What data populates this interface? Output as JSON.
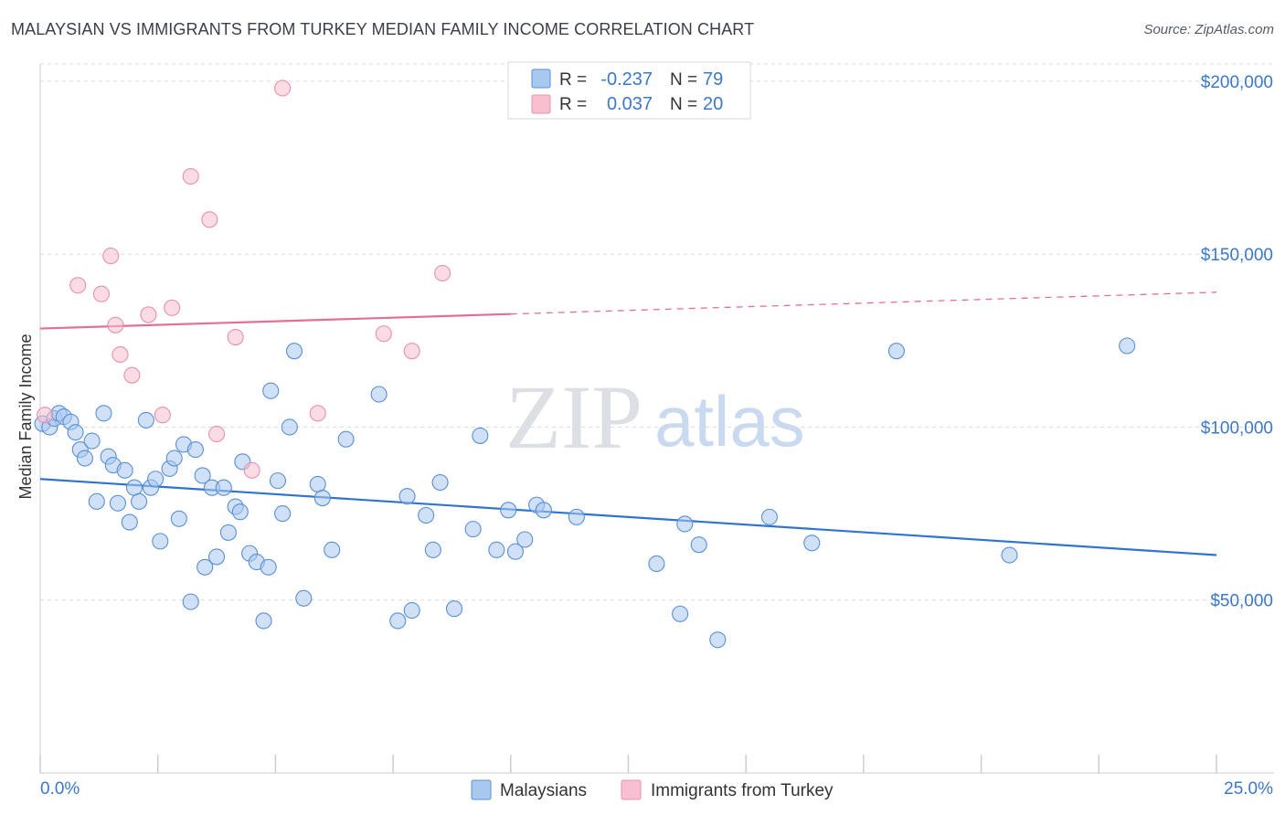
{
  "header": {
    "title": "MALAYSIAN VS IMMIGRANTS FROM TURKEY MEDIAN FAMILY INCOME CORRELATION CHART",
    "source": "Source: ZipAtlas.com"
  },
  "watermark": {
    "zip": "ZIP",
    "atlas": "atlas"
  },
  "colors": {
    "blue_fill": "#a9c8f0",
    "blue_stroke": "#5a8fd6",
    "blue_line": "#2f74d0",
    "pink_fill": "#f7bfd0",
    "pink_stroke": "#e890ad",
    "pink_line": "#e36f96",
    "grid": "#d8dce3",
    "tick_text": "#3c78c8"
  },
  "stats_legend": {
    "rows": [
      {
        "r_label": "R =",
        "r_value": "-0.237",
        "n_label": "N =",
        "n_value": "79"
      },
      {
        "r_label": "R =",
        "r_value": "0.037",
        "n_label": "N =",
        "n_value": "20"
      }
    ]
  },
  "bottom_legend": {
    "items": [
      "Malaysians",
      "Immigrants from Turkey"
    ]
  },
  "chart_data": {
    "type": "scatter",
    "title": "MALAYSIAN VS IMMIGRANTS FROM TURKEY MEDIAN FAMILY INCOME CORRELATION CHART",
    "xlabel": "",
    "ylabel": "Median Family Income",
    "xlim": [
      0,
      25
    ],
    "ylim": [
      0,
      205000
    ],
    "x_tick_labels": [
      "0.0%",
      "25.0%"
    ],
    "y_ticks": [
      50000,
      100000,
      150000,
      200000
    ],
    "y_tick_labels": [
      "$50,000",
      "$100,000",
      "$150,000",
      "$200,000"
    ],
    "grid": "horizontal dashed",
    "legend_position": "bottom",
    "series": [
      {
        "name": "Malaysians",
        "points": [
          [
            0.05,
            101000
          ],
          [
            0.2,
            100000
          ],
          [
            0.3,
            102500
          ],
          [
            0.4,
            104000
          ],
          [
            0.5,
            103000
          ],
          [
            0.65,
            101500
          ],
          [
            0.75,
            98500
          ],
          [
            0.85,
            93500
          ],
          [
            0.95,
            91000
          ],
          [
            1.1,
            96000
          ],
          [
            1.2,
            78500
          ],
          [
            1.35,
            104000
          ],
          [
            1.45,
            91500
          ],
          [
            1.55,
            89000
          ],
          [
            1.65,
            78000
          ],
          [
            1.8,
            87500
          ],
          [
            1.9,
            72500
          ],
          [
            2.0,
            82500
          ],
          [
            2.1,
            78500
          ],
          [
            2.25,
            102000
          ],
          [
            2.35,
            82500
          ],
          [
            2.45,
            85000
          ],
          [
            2.55,
            67000
          ],
          [
            2.75,
            88000
          ],
          [
            2.85,
            91000
          ],
          [
            2.95,
            73500
          ],
          [
            3.05,
            95000
          ],
          [
            3.2,
            49500
          ],
          [
            3.3,
            93500
          ],
          [
            3.45,
            86000
          ],
          [
            3.5,
            59500
          ],
          [
            3.65,
            82500
          ],
          [
            3.75,
            62500
          ],
          [
            3.9,
            82500
          ],
          [
            4.0,
            69500
          ],
          [
            4.15,
            77000
          ],
          [
            4.25,
            75500
          ],
          [
            4.3,
            90000
          ],
          [
            4.45,
            63500
          ],
          [
            4.6,
            61000
          ],
          [
            4.75,
            44000
          ],
          [
            4.85,
            59500
          ],
          [
            4.9,
            110500
          ],
          [
            5.05,
            84500
          ],
          [
            5.15,
            75000
          ],
          [
            5.3,
            100000
          ],
          [
            5.4,
            122000
          ],
          [
            5.6,
            50500
          ],
          [
            5.9,
            83500
          ],
          [
            6.0,
            79500
          ],
          [
            6.2,
            64500
          ],
          [
            6.5,
            96500
          ],
          [
            7.2,
            109500
          ],
          [
            7.6,
            44000
          ],
          [
            7.8,
            80000
          ],
          [
            7.9,
            47000
          ],
          [
            8.2,
            74500
          ],
          [
            8.35,
            64500
          ],
          [
            8.5,
            84000
          ],
          [
            8.8,
            47500
          ],
          [
            9.2,
            70500
          ],
          [
            9.35,
            97500
          ],
          [
            9.7,
            64500
          ],
          [
            9.95,
            76000
          ],
          [
            10.1,
            64000
          ],
          [
            10.3,
            67500
          ],
          [
            10.55,
            77500
          ],
          [
            10.7,
            76000
          ],
          [
            11.4,
            74000
          ],
          [
            13.1,
            60500
          ],
          [
            13.6,
            46000
          ],
          [
            13.7,
            72000
          ],
          [
            14.0,
            66000
          ],
          [
            14.4,
            38500
          ],
          [
            15.5,
            74000
          ],
          [
            16.4,
            66500
          ],
          [
            18.2,
            122000
          ],
          [
            20.6,
            63000
          ],
          [
            23.1,
            123500
          ]
        ],
        "trendline": {
          "x": [
            0,
            25
          ],
          "y": [
            85000,
            63000
          ]
        }
      },
      {
        "name": "Immigrants from Turkey",
        "points": [
          [
            0.1,
            103500
          ],
          [
            0.8,
            141000
          ],
          [
            1.3,
            138500
          ],
          [
            1.5,
            149500
          ],
          [
            1.6,
            129500
          ],
          [
            1.7,
            121000
          ],
          [
            1.95,
            115000
          ],
          [
            2.3,
            132500
          ],
          [
            2.6,
            103500
          ],
          [
            2.8,
            134500
          ],
          [
            3.2,
            172500
          ],
          [
            3.6,
            160000
          ],
          [
            3.75,
            98000
          ],
          [
            4.15,
            126000
          ],
          [
            4.5,
            87500
          ],
          [
            5.15,
            198000
          ],
          [
            5.9,
            104000
          ],
          [
            7.3,
            127000
          ],
          [
            7.9,
            122000
          ],
          [
            8.55,
            144500
          ]
        ],
        "trendline": {
          "x": [
            0,
            25
          ],
          "y": [
            128500,
            139000
          ]
        }
      }
    ]
  }
}
